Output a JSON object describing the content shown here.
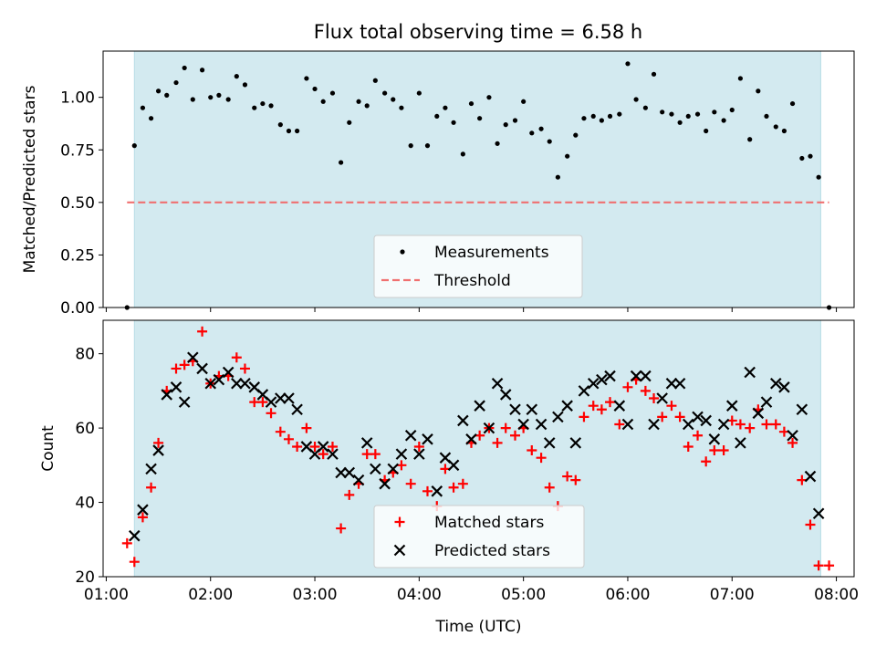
{
  "title": "Flux total observing time = 6.58 h",
  "colors": {
    "span": "#d3eaf0",
    "span_edge": "#b8dde6",
    "threshold": "#f07070",
    "matched": "#ff0000",
    "predicted": "#000000",
    "points": "#000000"
  },
  "chart_data": [
    {
      "type": "scatter",
      "ylabel": "Matched/Predicted stars",
      "xlim": [
        0.97,
        8.17
      ],
      "ylim": [
        0.0,
        1.22
      ],
      "yticks": [
        0.0,
        0.25,
        0.5,
        0.75,
        1.0
      ],
      "ytick_labels": [
        "0.00",
        "0.25",
        "0.50",
        "0.75",
        "1.00"
      ],
      "observing_span": [
        1.27,
        7.85
      ],
      "threshold": {
        "y": 0.5,
        "x": [
          1.2,
          7.93
        ]
      },
      "legend": {
        "placement": "lower-center",
        "entries": [
          "Measurements",
          "Threshold"
        ]
      },
      "series": [
        {
          "name": "Measurements",
          "x": [
            1.2,
            1.27,
            1.35,
            1.43,
            1.5,
            1.58,
            1.67,
            1.75,
            1.83,
            1.92,
            2.0,
            2.08,
            2.17,
            2.25,
            2.33,
            2.42,
            2.5,
            2.58,
            2.67,
            2.75,
            2.83,
            2.92,
            3.0,
            3.08,
            3.17,
            3.25,
            3.33,
            3.42,
            3.5,
            3.58,
            3.67,
            3.75,
            3.83,
            3.92,
            4.0,
            4.08,
            4.17,
            4.25,
            4.33,
            4.42,
            4.5,
            4.58,
            4.67,
            4.75,
            4.83,
            4.92,
            5.0,
            5.08,
            5.17,
            5.25,
            5.33,
            5.42,
            5.5,
            5.58,
            5.67,
            5.75,
            5.83,
            5.92,
            6.0,
            6.08,
            6.17,
            6.25,
            6.33,
            6.42,
            6.5,
            6.58,
            6.67,
            6.75,
            6.83,
            6.92,
            7.0,
            7.08,
            7.17,
            7.25,
            7.33,
            7.42,
            7.5,
            7.58,
            7.67,
            7.75,
            7.83,
            7.93
          ],
          "y": [
            0.0,
            0.77,
            0.95,
            0.9,
            1.03,
            1.01,
            1.07,
            1.14,
            0.99,
            1.13,
            1.0,
            1.01,
            0.99,
            1.1,
            1.06,
            0.95,
            0.97,
            0.96,
            0.87,
            0.84,
            0.84,
            1.09,
            1.04,
            0.98,
            1.02,
            0.69,
            0.88,
            0.98,
            0.96,
            1.08,
            1.02,
            0.99,
            0.95,
            0.77,
            1.02,
            0.77,
            0.91,
            0.95,
            0.88,
            0.73,
            0.97,
            0.9,
            1.0,
            0.78,
            0.87,
            0.89,
            0.98,
            0.83,
            0.85,
            0.79,
            0.62,
            0.72,
            0.82,
            0.9,
            0.91,
            0.89,
            0.91,
            0.92,
            1.16,
            0.99,
            0.95,
            1.11,
            0.93,
            0.92,
            0.88,
            0.91,
            0.92,
            0.84,
            0.93,
            0.89,
            0.94,
            1.09,
            0.8,
            1.03,
            0.91,
            0.86,
            0.84,
            0.97,
            0.71,
            0.72,
            0.62,
            0.0
          ]
        }
      ]
    },
    {
      "type": "scatter",
      "xlabel": "Time (UTC)",
      "ylabel": "Count",
      "xlim": [
        0.97,
        8.17
      ],
      "ylim": [
        20,
        89
      ],
      "yticks": [
        20,
        40,
        60,
        80
      ],
      "ytick_labels": [
        "20",
        "40",
        "60",
        "80"
      ],
      "xticks": [
        1,
        2,
        3,
        4,
        5,
        6,
        7,
        8
      ],
      "xtick_labels": [
        "01:00",
        "02:00",
        "03:00",
        "04:00",
        "05:00",
        "06:00",
        "07:00",
        "08:00"
      ],
      "observing_span": [
        1.27,
        7.85
      ],
      "legend": {
        "placement": "lower-center",
        "entries": [
          "Matched stars",
          "Predicted stars"
        ]
      },
      "series": [
        {
          "name": "Matched stars",
          "x": [
            1.2,
            1.27,
            1.35,
            1.43,
            1.5,
            1.58,
            1.67,
            1.75,
            1.83,
            1.92,
            2.0,
            2.08,
            2.17,
            2.25,
            2.33,
            2.42,
            2.5,
            2.58,
            2.67,
            2.75,
            2.83,
            2.92,
            3.0,
            3.08,
            3.17,
            3.25,
            3.33,
            3.42,
            3.5,
            3.58,
            3.67,
            3.75,
            3.83,
            3.92,
            4.0,
            4.08,
            4.17,
            4.25,
            4.33,
            4.42,
            4.5,
            4.58,
            4.67,
            4.75,
            4.83,
            4.92,
            5.0,
            5.08,
            5.17,
            5.25,
            5.33,
            5.42,
            5.5,
            5.58,
            5.67,
            5.75,
            5.83,
            5.92,
            6.0,
            6.08,
            6.17,
            6.25,
            6.33,
            6.42,
            6.5,
            6.58,
            6.67,
            6.75,
            6.83,
            6.92,
            7.0,
            7.08,
            7.17,
            7.25,
            7.33,
            7.42,
            7.5,
            7.58,
            7.67,
            7.75,
            7.83,
            7.93
          ],
          "y": [
            29,
            24,
            36,
            44,
            56,
            70,
            76,
            77,
            78,
            86,
            72,
            74,
            74,
            79,
            76,
            67,
            67,
            64,
            59,
            57,
            55,
            60,
            55,
            53,
            55,
            33,
            42,
            45,
            53,
            53,
            46,
            48,
            50,
            45,
            55,
            43,
            39,
            49,
            44,
            45,
            56,
            58,
            60,
            56,
            60,
            58,
            60,
            54,
            52,
            44,
            39,
            47,
            46,
            63,
            66,
            65,
            67,
            61,
            71,
            73,
            70,
            68,
            63,
            66,
            63,
            55,
            58,
            51,
            54,
            54,
            62,
            61,
            60,
            65,
            61,
            61,
            59,
            56,
            46,
            34,
            23,
            23
          ]
        },
        {
          "name": "Predicted stars",
          "x": [
            1.27,
            1.35,
            1.43,
            1.5,
            1.58,
            1.67,
            1.75,
            1.83,
            1.92,
            2.0,
            2.08,
            2.17,
            2.25,
            2.33,
            2.42,
            2.5,
            2.58,
            2.67,
            2.75,
            2.83,
            2.92,
            3.0,
            3.08,
            3.17,
            3.25,
            3.33,
            3.42,
            3.5,
            3.58,
            3.67,
            3.75,
            3.83,
            3.92,
            4.0,
            4.08,
            4.17,
            4.25,
            4.33,
            4.42,
            4.5,
            4.58,
            4.67,
            4.75,
            4.83,
            4.92,
            5.0,
            5.08,
            5.17,
            5.25,
            5.33,
            5.42,
            5.5,
            5.58,
            5.67,
            5.75,
            5.83,
            5.92,
            6.0,
            6.08,
            6.17,
            6.25,
            6.33,
            6.42,
            6.5,
            6.58,
            6.67,
            6.75,
            6.83,
            6.92,
            7.0,
            7.08,
            7.17,
            7.25,
            7.33,
            7.42,
            7.5,
            7.58,
            7.67,
            7.75,
            7.83
          ],
          "y": [
            31,
            38,
            49,
            54,
            69,
            71,
            67,
            79,
            76,
            72,
            73,
            75,
            72,
            72,
            71,
            69,
            67,
            68,
            68,
            65,
            55,
            53,
            55,
            53,
            48,
            48,
            46,
            56,
            49,
            45,
            49,
            53,
            58,
            53,
            57,
            43,
            52,
            50,
            62,
            57,
            66,
            60,
            72,
            69,
            65,
            61,
            65,
            61,
            56,
            63,
            66,
            56,
            70,
            72,
            73,
            74,
            66,
            61,
            74,
            74,
            61,
            68,
            72,
            72,
            61,
            63,
            62,
            57,
            61,
            66,
            56,
            75,
            64,
            67,
            72,
            71,
            58,
            65,
            47,
            37
          ]
        }
      ]
    }
  ]
}
